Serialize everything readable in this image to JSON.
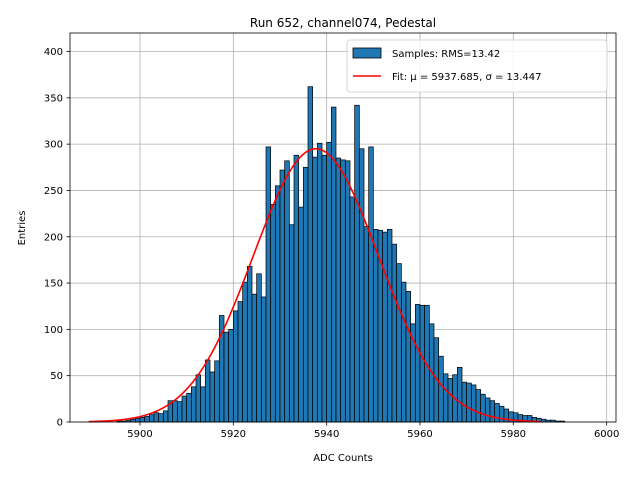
{
  "chart_data": {
    "type": "bar",
    "title": "Run 652, channel074, Pedestal",
    "xlabel": "ADC Counts",
    "ylabel": "Entries",
    "xlim": [
      5885,
      6002
    ],
    "ylim": [
      0,
      420
    ],
    "xticks": [
      5900,
      5920,
      5940,
      5960,
      5980,
      6000
    ],
    "yticks": [
      0,
      50,
      100,
      150,
      200,
      250,
      300,
      350,
      400
    ],
    "grid": true,
    "legend_position": "top-right",
    "bin_width": 1,
    "bin_start": 5889,
    "bar_color": "#1f77b4",
    "fit_color": "#ff0000",
    "series": [
      {
        "name": "Samples: RMS=13.42",
        "kind": "histogram",
        "values": [
          0,
          0,
          0,
          0,
          0,
          0,
          1,
          1,
          2,
          3,
          4,
          5,
          6,
          8,
          10,
          9,
          12,
          23,
          23,
          22,
          28,
          31,
          38,
          51,
          38,
          67,
          54,
          66,
          115,
          97,
          100,
          120,
          130,
          151,
          168,
          138,
          160,
          135,
          297,
          235,
          255,
          272,
          282,
          213,
          288,
          232,
          275,
          362,
          286,
          301,
          288,
          302,
          340,
          285,
          283,
          282,
          243,
          342,
          295,
          211,
          297,
          208,
          207,
          205,
          208,
          192,
          171,
          151,
          141,
          106,
          127,
          126,
          126,
          106,
          91,
          71,
          52,
          47,
          51,
          59,
          43,
          42,
          40,
          35,
          30,
          26,
          23,
          20,
          17,
          14,
          11,
          10,
          8,
          7,
          7,
          5,
          4,
          3,
          2,
          2,
          1,
          1,
          0
        ]
      },
      {
        "name": "Fit: μ = 5937.685, σ = 13.447",
        "kind": "gaussian-fit",
        "mu": 5937.685,
        "sigma": 13.447,
        "amplitude": 295,
        "x_range": [
          5889,
          5986
        ]
      }
    ]
  }
}
